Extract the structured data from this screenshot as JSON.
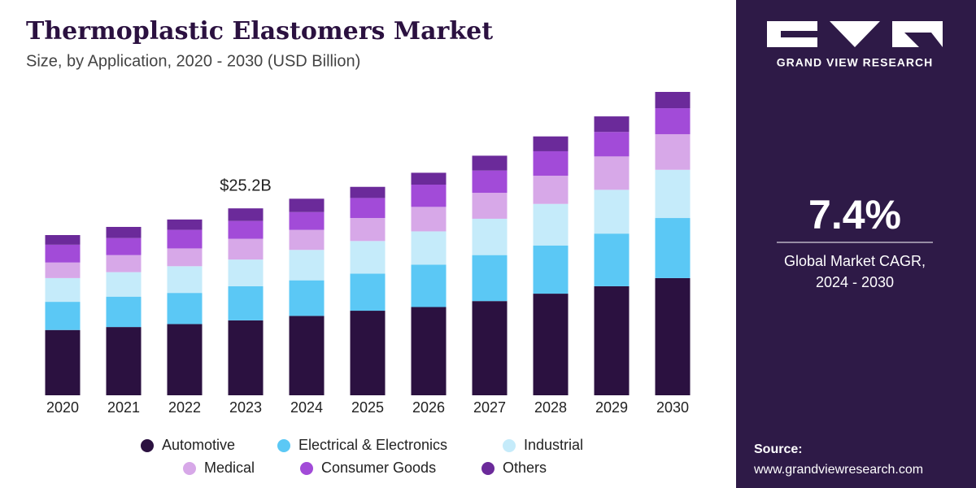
{
  "chart_data": {
    "type": "stacked_bar",
    "title": "Thermoplastic Elastomers Market",
    "subtitle": "Size, by Application, 2020 - 2030 (USD Billion)",
    "categories": [
      "2020",
      "2021",
      "2022",
      "2023",
      "2024",
      "2025",
      "2026",
      "2027",
      "2028",
      "2029",
      "2030"
    ],
    "series": [
      {
        "name": "Automotive",
        "color": "#2b1140",
        "values": [
          8.8,
          9.2,
          9.6,
          10.1,
          10.7,
          11.4,
          11.9,
          12.7,
          13.7,
          14.7,
          15.8
        ]
      },
      {
        "name": "Electrical & Electronics",
        "color": "#5bc8f5",
        "values": [
          3.8,
          4.1,
          4.2,
          4.6,
          4.8,
          5.0,
          5.7,
          6.2,
          6.5,
          7.1,
          8.1
        ]
      },
      {
        "name": "Industrial",
        "color": "#c5ebfa",
        "values": [
          3.2,
          3.3,
          3.6,
          3.6,
          4.1,
          4.4,
          4.5,
          4.9,
          5.6,
          5.9,
          6.5
        ]
      },
      {
        "name": "Medical",
        "color": "#d7a8e8",
        "values": [
          2.1,
          2.3,
          2.4,
          2.8,
          2.7,
          3.1,
          3.3,
          3.5,
          3.8,
          4.5,
          4.8
        ]
      },
      {
        "name": "Consumer Goods",
        "color": "#a24bd8",
        "values": [
          2.4,
          2.3,
          2.5,
          2.4,
          2.4,
          2.7,
          3.0,
          3.0,
          3.3,
          3.3,
          3.5
        ]
      },
      {
        "name": "Others",
        "color": "#6b2a9a",
        "values": [
          1.3,
          1.5,
          1.4,
          1.7,
          1.8,
          1.5,
          1.6,
          2.0,
          2.0,
          2.1,
          2.2
        ]
      }
    ],
    "annotation": {
      "x": "2023",
      "value": 25.2,
      "text": "$25.2B"
    }
  },
  "sidebar": {
    "brand": "GRAND VIEW RESEARCH",
    "cagr": "7.4%",
    "cagr_label": [
      "Global Market CAGR,",
      "2024 - 2030"
    ],
    "source_title": "Source:",
    "source_url": "www.grandviewresearch.com"
  }
}
